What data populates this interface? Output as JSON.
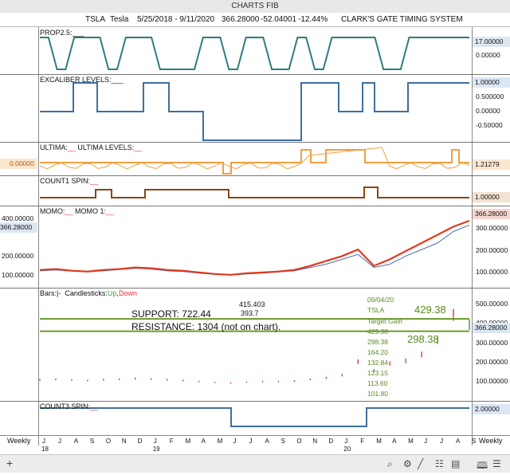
{
  "window": {
    "title": "CHARTS FIB"
  },
  "header": {
    "symbol": "TSLA",
    "name": "Tesla",
    "range": "5/25/2018 - 9/11/2020",
    "last": "366.28000",
    "change": "-52.04001",
    "pct": "-12.44%",
    "system": "CLARK'S GATE TIMING SYSTEM"
  },
  "panels": {
    "prop": {
      "label": "PROP2.5:",
      "suffix": "___",
      "value": "17.00000",
      "ticks": [
        "0.00000"
      ]
    },
    "excaliber": {
      "label": "EXCALIBER LEVELS:",
      "suffix": "___",
      "value": "1.00000",
      "ticks": [
        "0.500000",
        "0.00000",
        "-0.50000"
      ]
    },
    "ultima": {
      "label1": "ULTIMA:",
      "suffix1": "__",
      "label2": "ULTIMA LEVELS:",
      "suffix2": "__",
      "left_value": "0.00000",
      "value": "1.21279"
    },
    "count1": {
      "label": "COUNT1 SPIN:",
      "suffix": "__",
      "value": "1.00000"
    },
    "momo": {
      "label1": "MOMO:",
      "suffix1": "__",
      "label2": "MOMO 1:",
      "suffix2": "__",
      "left_top": "400.00000",
      "left_value": "366.28000",
      "left_ticks": [
        "200.00000",
        "100.00000"
      ],
      "value": "366.28000",
      "ticks": [
        "300.00000",
        "200.00000",
        "100.00000"
      ]
    },
    "bars": {
      "label": "Bars:",
      "bars_suffix": "|-",
      "candles": "Candlesticks:",
      "up": "Up",
      "down": "Down",
      "value": "366.28000",
      "ticks": [
        "500.00000",
        "400.00000",
        "300.00000",
        "200.00000",
        "100.00000"
      ]
    },
    "count3": {
      "label": "COUNT3 SPIN:",
      "suffix": "__",
      "value": "2.00000"
    }
  },
  "annotations": {
    "support": "SUPPORT: 722.44",
    "resistance": "RESISTANCE: 1304 (not on chart).",
    "price1": "415.403",
    "price2": "393.7",
    "date": "09/04/20",
    "ticker": "TSLA",
    "target_title": "Target Gain",
    "targets": [
      "429.38",
      "298.38",
      "164.20",
      "132.84",
      "123.15",
      "113.60",
      "101.80"
    ],
    "big_target1": "429.38",
    "big_target2": "298.38"
  },
  "axis": {
    "months": [
      "J",
      "J",
      "A",
      "S",
      "O",
      "N",
      "D",
      "J",
      "F",
      "M",
      "A",
      "M",
      "J",
      "J",
      "A",
      "S",
      "O",
      "N",
      "D",
      "J",
      "F",
      "M",
      "A",
      "M",
      "J",
      "J",
      "A",
      "S"
    ],
    "years": [
      "18",
      "19",
      "20"
    ],
    "period_left": "Weekly",
    "period_right": "Weekly"
  },
  "chart_data": {
    "type": "line",
    "title": "CHARTS FIB",
    "x": [
      "2018-06",
      "2018-07",
      "2018-08",
      "2018-09",
      "2018-10",
      "2018-11",
      "2018-12",
      "2019-01",
      "2019-02",
      "2019-03",
      "2019-04",
      "2019-05",
      "2019-06",
      "2019-07",
      "2019-08",
      "2019-09",
      "2019-10",
      "2019-11",
      "2019-12",
      "2020-01",
      "2020-02",
      "2020-03",
      "2020-04",
      "2020-05",
      "2020-06",
      "2020-07",
      "2020-08",
      "2020-09"
    ],
    "series": [
      {
        "name": "MOMO",
        "values": [
          65,
          70,
          60,
          55,
          65,
          70,
          80,
          75,
          65,
          60,
          50,
          40,
          35,
          45,
          50,
          55,
          65,
          90,
          120,
          150,
          190,
          90,
          130,
          180,
          230,
          280,
          330,
          366
        ]
      },
      {
        "name": "MOMO 1",
        "values": [
          60,
          65,
          58,
          52,
          60,
          68,
          75,
          70,
          60,
          55,
          45,
          38,
          33,
          40,
          45,
          52,
          60,
          80,
          100,
          130,
          160,
          80,
          100,
          150,
          190,
          230,
          300,
          340
        ]
      }
    ],
    "bars_close": [
      60,
      62,
      58,
      55,
      60,
      62,
      66,
      63,
      60,
      56,
      50,
      45,
      42,
      47,
      50,
      50,
      52,
      62,
      70,
      85,
      160,
      110,
      150,
      165,
      200,
      280,
      420,
      366
    ],
    "support_level": 415.403,
    "support_level2": 298.38,
    "ylim_bars": [
      0,
      500
    ],
    "ylim_momo": [
      0,
      400
    ],
    "colors": {
      "teal": "#2e7d7d",
      "blue": "#3e6fa0",
      "orange": "#f0a040",
      "brown": "#8b4513",
      "red": "#e03a1e",
      "green": "#6a9a2a"
    }
  }
}
